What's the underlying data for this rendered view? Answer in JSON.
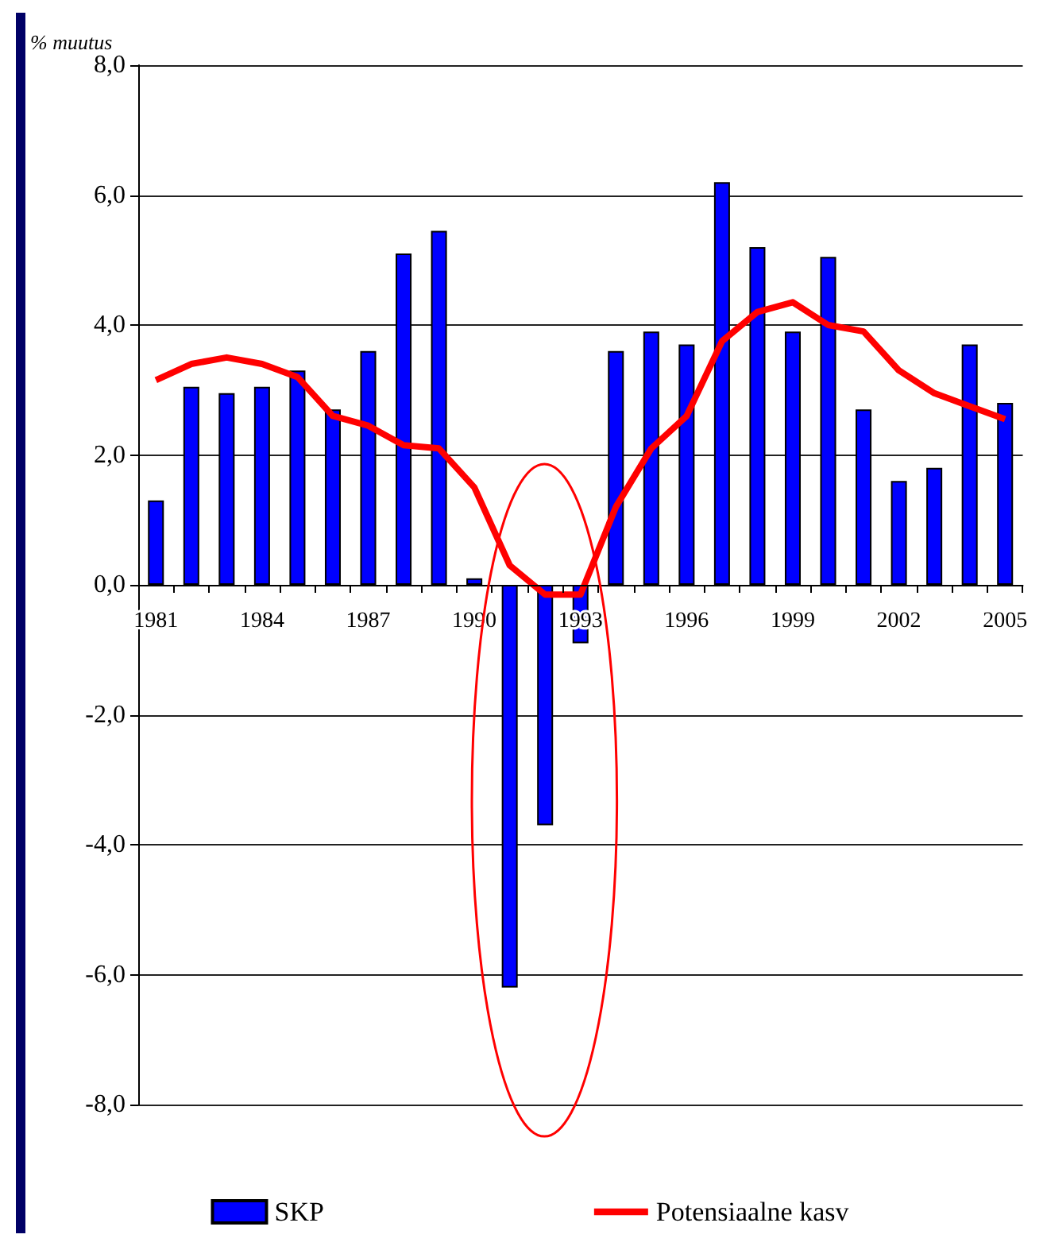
{
  "chart_data": {
    "type": "bar",
    "ylabel": "% muutus",
    "categories": [
      "1981",
      null,
      null,
      "1984",
      null,
      null,
      "1987",
      null,
      null,
      "1990",
      null,
      null,
      "1993",
      null,
      null,
      "1996",
      null,
      null,
      "1999",
      null,
      null,
      "2002",
      null,
      null,
      "2005"
    ],
    "series": [
      {
        "name": "SKP",
        "color": "#0000ff",
        "values": [
          1.3,
          3.05,
          2.95,
          3.05,
          3.3,
          2.7,
          3.6,
          5.1,
          5.45,
          0.1,
          -6.2,
          -3.7,
          -0.9,
          3.6,
          3.9,
          3.7,
          6.2,
          5.2,
          3.9,
          5.05,
          2.7,
          1.6,
          1.8,
          3.7,
          2.8
        ]
      },
      {
        "name": "Potensiaalne kasv",
        "type": "line",
        "color": "#ff0000",
        "marker": "none",
        "values": [
          3.15,
          3.4,
          3.5,
          3.4,
          3.2,
          2.6,
          2.45,
          2.15,
          2.1,
          1.5,
          0.3,
          -0.15,
          -0.15,
          1.2,
          2.1,
          2.6,
          3.75,
          4.2,
          4.35,
          4.0,
          3.9,
          3.3,
          2.95,
          2.75,
          2.55
        ]
      }
    ],
    "ylim": [
      -8,
      8
    ],
    "yticks": [
      {
        "value": -8,
        "label": "-8,0"
      },
      {
        "value": -6,
        "label": "-6,0"
      },
      {
        "value": -4,
        "label": "-4,0"
      },
      {
        "value": -2,
        "label": "-2,0"
      },
      {
        "value": 0,
        "label": "0,0"
      },
      {
        "value": 2,
        "label": "2,0"
      },
      {
        "value": 4,
        "label": "4,0"
      },
      {
        "value": 6,
        "label": "6,0"
      },
      {
        "value": 8,
        "label": "8,0"
      }
    ],
    "grid": "y",
    "legend": "bottom"
  }
}
